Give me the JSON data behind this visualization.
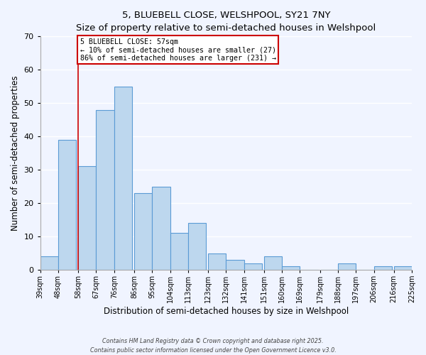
{
  "title_line1": "5, BLUEBELL CLOSE, WELSHPOOL, SY21 7NY",
  "title_line2": "Size of property relative to semi-detached houses in Welshpool",
  "xlabel": "Distribution of semi-detached houses by size in Welshpool",
  "ylabel": "Number of semi-detached properties",
  "bar_left_edges": [
    39,
    48,
    58,
    67,
    76,
    86,
    95,
    104,
    113,
    123,
    132,
    141,
    151,
    160,
    169,
    179,
    188,
    197,
    206,
    216
  ],
  "bar_heights": [
    4,
    39,
    31,
    48,
    55,
    23,
    25,
    11,
    14,
    5,
    3,
    2,
    4,
    1,
    0,
    0,
    2,
    0,
    1,
    1
  ],
  "bin_width": 9,
  "bar_color": "#bdd7ee",
  "bar_edgecolor": "#5b9bd5",
  "tick_labels": [
    "39sqm",
    "48sqm",
    "58sqm",
    "67sqm",
    "76sqm",
    "86sqm",
    "95sqm",
    "104sqm",
    "113sqm",
    "123sqm",
    "132sqm",
    "141sqm",
    "151sqm",
    "160sqm",
    "169sqm",
    "179sqm",
    "188sqm",
    "197sqm",
    "206sqm",
    "216sqm",
    "225sqm"
  ],
  "tick_positions": [
    39,
    48,
    58,
    67,
    76,
    86,
    95,
    104,
    113,
    123,
    132,
    141,
    151,
    160,
    169,
    179,
    188,
    197,
    206,
    216,
    225
  ],
  "ylim": [
    0,
    70
  ],
  "yticks": [
    0,
    10,
    20,
    30,
    40,
    50,
    60,
    70
  ],
  "property_line_x": 58,
  "annotation_title": "5 BLUEBELL CLOSE: 57sqm",
  "annotation_line1": "← 10% of semi-detached houses are smaller (27)",
  "annotation_line2": "86% of semi-detached houses are larger (231) →",
  "annotation_box_color": "#ffffff",
  "annotation_box_edgecolor": "#cc0000",
  "property_line_color": "#cc0000",
  "background_color": "#f0f4ff",
  "grid_color": "#ffffff",
  "footer_line1": "Contains HM Land Registry data © Crown copyright and database right 2025.",
  "footer_line2": "Contains public sector information licensed under the Open Government Licence v3.0."
}
